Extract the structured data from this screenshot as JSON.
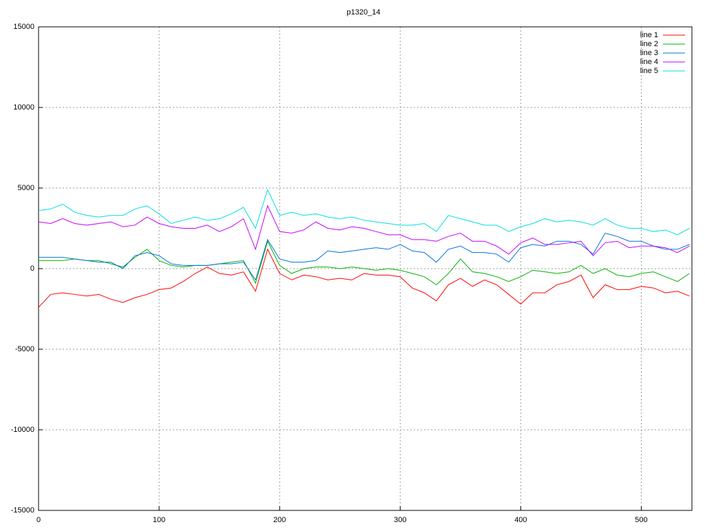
{
  "chart_data": {
    "type": "line",
    "title": "p1320_14",
    "x": [
      0,
      10,
      20,
      30,
      40,
      50,
      60,
      70,
      80,
      90,
      100,
      110,
      120,
      130,
      140,
      150,
      160,
      170,
      180,
      190,
      200,
      210,
      220,
      230,
      240,
      250,
      260,
      270,
      280,
      290,
      300,
      310,
      320,
      330,
      340,
      350,
      360,
      370,
      380,
      390,
      400,
      410,
      420,
      430,
      440,
      450,
      460,
      470,
      480,
      490,
      500,
      510,
      520,
      530,
      540
    ],
    "series": [
      {
        "name": "line 1",
        "color": "#ff0000",
        "values": [
          -2400,
          -1600,
          -1500,
          -1600,
          -1700,
          -1600,
          -1900,
          -2100,
          -1800,
          -1600,
          -1300,
          -1200,
          -800,
          -300,
          100,
          -300,
          -400,
          -200,
          -1400,
          1200,
          -300,
          -700,
          -400,
          -500,
          -700,
          -600,
          -700,
          -300,
          -400,
          -400,
          -500,
          -1200,
          -1500,
          -2000,
          -1000,
          -600,
          -1100,
          -700,
          -1000,
          -1600,
          -2200,
          -1500,
          -1500,
          -1000,
          -800,
          -400,
          -1800,
          -1000,
          -1300,
          -1300,
          -1100,
          -1200,
          -1500,
          -1400,
          -1700
        ]
      },
      {
        "name": "line 2",
        "color": "#00b000",
        "values": [
          500,
          500,
          500,
          600,
          500,
          500,
          300,
          100,
          700,
          1200,
          500,
          200,
          100,
          200,
          200,
          300,
          400,
          500,
          -900,
          1700,
          200,
          -300,
          0,
          100,
          100,
          0,
          100,
          0,
          -100,
          0,
          -100,
          -300,
          -500,
          -1000,
          -300,
          600,
          -200,
          -300,
          -500,
          -800,
          -500,
          -100,
          -200,
          -300,
          -200,
          200,
          -300,
          0,
          -400,
          -500,
          -300,
          -200,
          -500,
          -800,
          -300
        ]
      },
      {
        "name": "line 3",
        "color": "#0070dd",
        "values": [
          700,
          700,
          700,
          600,
          500,
          400,
          400,
          0,
          800,
          1000,
          800,
          300,
          200,
          200,
          200,
          300,
          300,
          400,
          -700,
          1800,
          600,
          400,
          400,
          500,
          1100,
          1000,
          1100,
          1200,
          1300,
          1200,
          1500,
          1100,
          1000,
          400,
          1200,
          1400,
          1000,
          1000,
          900,
          400,
          1300,
          1500,
          1400,
          1700,
          1700,
          1500,
          900,
          2200,
          2000,
          1700,
          1700,
          1400,
          1200,
          1200,
          1500
        ]
      },
      {
        "name": "line 4",
        "color": "#c000ff",
        "values": [
          2900,
          2800,
          3100,
          2800,
          2700,
          2800,
          2900,
          2600,
          2700,
          3200,
          2800,
          2600,
          2500,
          2500,
          2700,
          2300,
          2600,
          3100,
          1200,
          3900,
          2300,
          2200,
          2400,
          2900,
          2500,
          2400,
          2600,
          2500,
          2300,
          2100,
          2100,
          1800,
          1800,
          1700,
          2000,
          2200,
          1700,
          1700,
          1400,
          900,
          1600,
          1900,
          1500,
          1500,
          1600,
          1700,
          800,
          1600,
          1700,
          1300,
          1400,
          1400,
          1300,
          1000,
          1400
        ]
      },
      {
        "name": "line 5",
        "color": "#00dddd",
        "values": [
          3600,
          3700,
          4000,
          3500,
          3300,
          3200,
          3300,
          3300,
          3700,
          3900,
          3400,
          2800,
          3000,
          3200,
          3000,
          3100,
          3400,
          3800,
          2500,
          4900,
          3300,
          3500,
          3300,
          3400,
          3200,
          3100,
          3200,
          3000,
          2900,
          2800,
          2700,
          2700,
          2800,
          2300,
          3300,
          3100,
          2900,
          2700,
          2700,
          2300,
          2600,
          2800,
          3100,
          2900,
          3000,
          2900,
          2700,
          3100,
          2700,
          2500,
          2500,
          2300,
          2400,
          2100,
          2500
        ]
      }
    ],
    "xlim": [
      0,
      542
    ],
    "xticks": [
      0,
      100,
      200,
      300,
      400,
      500
    ],
    "ylim": [
      -15000,
      15000
    ],
    "yticks": [
      -15000,
      -10000,
      -5000,
      0,
      5000,
      10000,
      15000
    ],
    "grid": true,
    "legend": "top-right"
  }
}
